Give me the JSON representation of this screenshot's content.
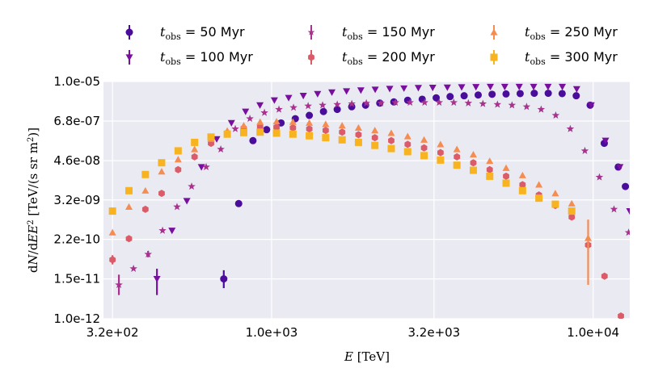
{
  "chart_data": {
    "type": "scatter",
    "xlabel": "E [TeV]",
    "ylabel": "dN/dEE² [TeV/(s sr m²)]",
    "x_scale": "log",
    "y_scale": "log",
    "xlim": [
      300,
      13000
    ],
    "ylim": [
      1e-12,
      1e-05
    ],
    "x_ticks": [
      {
        "v": 320,
        "label": "3.2e+02"
      },
      {
        "v": 1000,
        "label": "1.0e+03"
      },
      {
        "v": 3200,
        "label": "3.2e+03"
      },
      {
        "v": 10000,
        "label": "1.0e+04"
      }
    ],
    "y_ticks": [
      {
        "v": 1e-12,
        "label": "1.0e-12"
      },
      {
        "v": 1.5e-11,
        "label": "1.5e-11"
      },
      {
        "v": 2.2e-10,
        "label": "2.2e-10"
      },
      {
        "v": 3.2e-09,
        "label": "3.2e-09"
      },
      {
        "v": 4.6e-08,
        "label": "4.6e-08"
      },
      {
        "v": 6.8e-07,
        "label": "6.8e-07"
      },
      {
        "v": 1e-05,
        "label": "1.0e-05"
      }
    ],
    "grid": true,
    "legend_position": "top",
    "series": [
      {
        "name": "$t_{\\rm obs} = 50$ Myr",
        "label_prefix": "t",
        "label_sub": "obs",
        "label_rest": " = 50 Myr",
        "color": "#4a0c9b",
        "marker": "circle",
        "x": [
          710,
          790,
          875,
          965,
          1070,
          1185,
          1310,
          1450,
          1600,
          1775,
          1960,
          2170,
          2400,
          2650,
          2940,
          3250,
          3590,
          3970,
          4390,
          4850,
          5360,
          5930,
          6560,
          7250,
          8010,
          8860,
          9790,
          10830,
          11970,
          12600
        ],
        "y": [
          1.5e-11,
          2.5e-09,
          1.8e-07,
          3.8e-07,
          6e-07,
          8e-07,
          1e-06,
          1.3e-06,
          1.5e-06,
          1.8e-06,
          2e-06,
          2.3e-06,
          2.5e-06,
          2.8e-06,
          3e-06,
          3.3e-06,
          3.6e-06,
          3.8e-06,
          4e-06,
          4.2e-06,
          4.3e-06,
          4.4e-06,
          4.5e-06,
          4.5e-06,
          4.4e-06,
          3.8e-06,
          2e-06,
          1.5e-07,
          3e-08,
          8e-09
        ],
        "yerr_low": [
          7e-12,
          0,
          0,
          0,
          0,
          0,
          0,
          0,
          0,
          0,
          0,
          0,
          0,
          0,
          0,
          0,
          0,
          0,
          0,
          0,
          0,
          0,
          0,
          0,
          0,
          0,
          0,
          0,
          0,
          0
        ],
        "yerr_high": [
          1.2e-11,
          0,
          0,
          0,
          0,
          0,
          0,
          0,
          0,
          0,
          0,
          0,
          0,
          0,
          0,
          0,
          0,
          0,
          0,
          0,
          0,
          0,
          0,
          0,
          0,
          0,
          0,
          0,
          0,
          0
        ]
      },
      {
        "name": "$t_{\\rm obs} = 100$ Myr",
        "label_prefix": "t",
        "label_sub": "obs",
        "label_rest": " = 100 Myr",
        "color": "#780f9e",
        "marker": "tri_down",
        "x": [
          440,
          490,
          545,
          605,
          675,
          750,
          830,
          920,
          1020,
          1130,
          1255,
          1390,
          1540,
          1710,
          1895,
          2100,
          2330,
          2580,
          2860,
          3170,
          3520,
          3900,
          4320,
          4790,
          5310,
          5890,
          6530,
          7240,
          8020,
          8890,
          9860,
          10930,
          12110,
          13000
        ],
        "y": [
          1.5e-11,
          4e-10,
          3e-09,
          3e-08,
          2e-07,
          6e-07,
          1.3e-06,
          2e-06,
          2.8e-06,
          3.3e-06,
          3.8e-06,
          4.3e-06,
          4.8e-06,
          5.2e-06,
          5.5e-06,
          5.8e-06,
          6.1e-06,
          6.3e-06,
          6.5e-06,
          6.6e-06,
          6.7e-06,
          6.8e-06,
          6.9e-06,
          7e-06,
          7e-06,
          7e-06,
          7e-06,
          7e-06,
          7e-06,
          6e-06,
          2e-06,
          1.8e-07,
          3e-08,
          1.5e-09
        ],
        "yerr_low": [
          1e-11,
          0,
          0,
          0,
          0,
          0,
          0,
          0,
          0,
          0,
          0,
          0,
          0,
          0,
          0,
          0,
          0,
          0,
          0,
          0,
          0,
          0,
          0,
          0,
          0,
          0,
          0,
          0,
          0,
          0,
          0,
          0,
          0,
          0
        ],
        "yerr_high": [
          1.5e-11,
          0,
          0,
          0,
          0,
          0,
          0,
          0,
          0,
          0,
          0,
          0,
          0,
          0,
          0,
          0,
          0,
          0,
          0,
          0,
          0,
          0,
          0,
          0,
          0,
          0,
          0,
          0,
          0,
          0,
          0,
          0,
          0,
          0
        ]
      },
      {
        "name": "$t_{\\rm obs} = 150$ Myr",
        "label_prefix": "t",
        "label_sub": "obs",
        "label_rest": " = 150 Myr",
        "color": "#a8328e",
        "marker": "star",
        "x": [
          335,
          372,
          413,
          458,
          508,
          564,
          626,
          695,
          771,
          856,
          950,
          1054,
          1170,
          1299,
          1441,
          1600,
          1776,
          1971,
          2188,
          2428,
          2695,
          2992,
          3321,
          3686,
          4091,
          4541,
          5040,
          5594,
          6210,
          6892,
          7650,
          8491,
          9425,
          10460,
          11610,
          12890
        ],
        "y": [
          1e-11,
          3e-11,
          8e-11,
          4e-10,
          2e-09,
          8e-09,
          3e-08,
          1e-07,
          4e-07,
          8e-07,
          1.2e-06,
          1.5e-06,
          1.7e-06,
          1.9e-06,
          2e-06,
          2.1e-06,
          2.2e-06,
          2.3e-06,
          2.3e-06,
          2.4e-06,
          2.4e-06,
          2.4e-06,
          2.4e-06,
          2.4e-06,
          2.3e-06,
          2.2e-06,
          2.1e-06,
          2e-06,
          1.8e-06,
          1.5e-06,
          1e-06,
          4e-07,
          9e-08,
          1.5e-08,
          1.7e-09,
          3.5e-10
        ],
        "yerr_low": [
          5e-12,
          0,
          1.5e-11,
          0,
          0,
          0,
          0,
          0,
          0,
          0,
          0,
          0,
          0,
          0,
          0,
          0,
          0,
          0,
          0,
          0,
          0,
          0,
          0,
          0,
          0,
          0,
          0,
          0,
          0,
          0,
          0,
          0,
          0,
          0,
          0,
          0
        ],
        "yerr_high": [
          1e-11,
          0,
          2e-11,
          0,
          0,
          0,
          0,
          0,
          0,
          0,
          0,
          0,
          0,
          0,
          0,
          0,
          0,
          0,
          0,
          0,
          0,
          0,
          0,
          0,
          0,
          0,
          0,
          0,
          0,
          0,
          0,
          0,
          0,
          0,
          0,
          0
        ]
      },
      {
        "name": "$t_{\\rm obs} = 200$ Myr",
        "label_prefix": "t",
        "label_sub": "obs",
        "label_rest": " = 200 Myr",
        "color": "#db5c68",
        "marker": "hexagon",
        "x": [
          320,
          360,
          405,
          455,
          512,
          576,
          648,
          728,
          819,
          921,
          1036,
          1165,
          1310,
          1473,
          1657,
          1863,
          2095,
          2356,
          2650,
          2980,
          3352,
          3770,
          4240,
          4768,
          5362,
          6031,
          6783,
          7628,
          8579,
          9648,
          10850,
          12200
        ],
        "y": [
          5.5e-11,
          2.3e-10,
          1.7e-09,
          5e-09,
          2.5e-08,
          6e-08,
          1.5e-07,
          3e-07,
          4.2e-07,
          4.6e-07,
          4.5e-07,
          4.3e-07,
          4e-07,
          3.6e-07,
          3.2e-07,
          2.7e-07,
          2.2e-07,
          1.8e-07,
          1.4e-07,
          1.1e-07,
          8e-08,
          6e-08,
          4e-08,
          2.5e-08,
          1.6e-08,
          9e-09,
          4.5e-09,
          2.2e-09,
          1e-09,
          1.5e-10,
          1.8e-11,
          1.2e-12
        ],
        "yerr_low": [
          1.5e-11,
          0,
          0,
          0,
          0,
          0,
          0,
          0,
          0,
          0,
          0,
          0,
          0,
          0,
          0,
          0,
          0,
          0,
          0,
          0,
          0,
          0,
          0,
          0,
          0,
          0,
          0,
          0,
          0,
          0,
          0,
          0
        ],
        "yerr_high": [
          2e-11,
          0,
          0,
          0,
          0,
          0,
          0,
          0,
          0,
          0,
          0,
          0,
          0,
          0,
          0,
          0,
          0,
          0,
          0,
          0,
          0,
          0,
          0,
          0,
          0,
          0,
          0,
          0,
          0,
          0,
          0,
          0
        ]
      },
      {
        "name": "$t_{\\rm obs} = 250$ Myr",
        "label_prefix": "t",
        "label_sub": "obs",
        "label_rest": " = 250 Myr",
        "color": "#f58c50",
        "marker": "tri_up",
        "x": [
          320,
          360,
          405,
          455,
          512,
          576,
          648,
          728,
          819,
          921,
          1036,
          1165,
          1310,
          1473,
          1657,
          1863,
          2095,
          2356,
          2650,
          2980,
          3352,
          3770,
          4240,
          4768,
          5362,
          6031,
          6783,
          7628,
          8579,
          9648
        ],
        "y": [
          3.5e-10,
          2e-09,
          6e-09,
          2.2e-08,
          5e-08,
          1e-07,
          2e-07,
          3.5e-07,
          5e-07,
          6.4e-07,
          6.6e-07,
          6.4e-07,
          6e-07,
          5.5e-07,
          5e-07,
          4.3e-07,
          3.6e-07,
          3e-07,
          2.4e-07,
          1.9e-07,
          1.4e-07,
          1e-07,
          7e-08,
          4.5e-08,
          2.8e-08,
          1.7e-08,
          9e-09,
          5e-09,
          2.5e-09,
          2.4e-10
        ],
        "yerr_low": [
          0,
          0,
          0,
          0,
          0,
          0,
          0,
          0,
          0,
          0,
          0,
          0,
          0,
          0,
          0,
          0,
          0,
          0,
          0,
          0,
          0,
          0,
          0,
          0,
          0,
          0,
          0,
          0,
          0,
          2.3e-10
        ],
        "yerr_high": [
          0,
          0,
          0,
          0,
          0,
          0,
          0,
          0,
          0,
          0,
          0,
          0,
          0,
          0,
          0,
          0,
          0,
          0,
          0,
          0,
          0,
          0,
          0,
          0,
          0,
          0,
          0,
          0,
          0,
          6e-10
        ]
      },
      {
        "name": "$t_{\\rm obs} = 300$ Myr",
        "label_prefix": "t",
        "label_sub": "obs",
        "label_rest": " = 300 Myr",
        "color": "#f8b320",
        "marker": "square",
        "x": [
          320,
          360,
          405,
          455,
          512,
          576,
          648,
          728,
          819,
          921,
          1036,
          1165,
          1310,
          1473,
          1657,
          1863,
          2095,
          2356,
          2650,
          2980,
          3352,
          3770,
          4240,
          4768,
          5362,
          6031,
          6783,
          7628,
          8579
        ],
        "y": [
          1.5e-09,
          6e-09,
          1.8e-08,
          4e-08,
          9e-08,
          1.6e-07,
          2.3e-07,
          2.8e-07,
          3.1e-07,
          3.2e-07,
          3e-07,
          2.8e-07,
          2.5e-07,
          2.2e-07,
          1.9e-07,
          1.6e-07,
          1.3e-07,
          1.05e-07,
          8.5e-08,
          6.5e-08,
          4.8e-08,
          3.4e-08,
          2.4e-08,
          1.6e-08,
          1e-08,
          6e-09,
          3.6e-09,
          2.4e-09,
          1.5e-09
        ],
        "yerr_low": [
          0,
          0,
          0,
          0,
          0,
          0,
          0,
          0,
          0,
          0,
          0,
          0,
          0,
          0,
          0,
          0,
          0,
          0,
          0,
          0,
          0,
          0,
          0,
          0,
          0,
          0,
          0,
          0,
          0
        ],
        "yerr_high": [
          0,
          0,
          0,
          0,
          0,
          0,
          0,
          0,
          0,
          0,
          0,
          0,
          0,
          0,
          0,
          0,
          0,
          0,
          0,
          0,
          0,
          0,
          0,
          0,
          0,
          0,
          0,
          0,
          0
        ]
      }
    ]
  },
  "style": {
    "plot_bg": "#eaeaf2",
    "grid_color": "#ffffff"
  }
}
